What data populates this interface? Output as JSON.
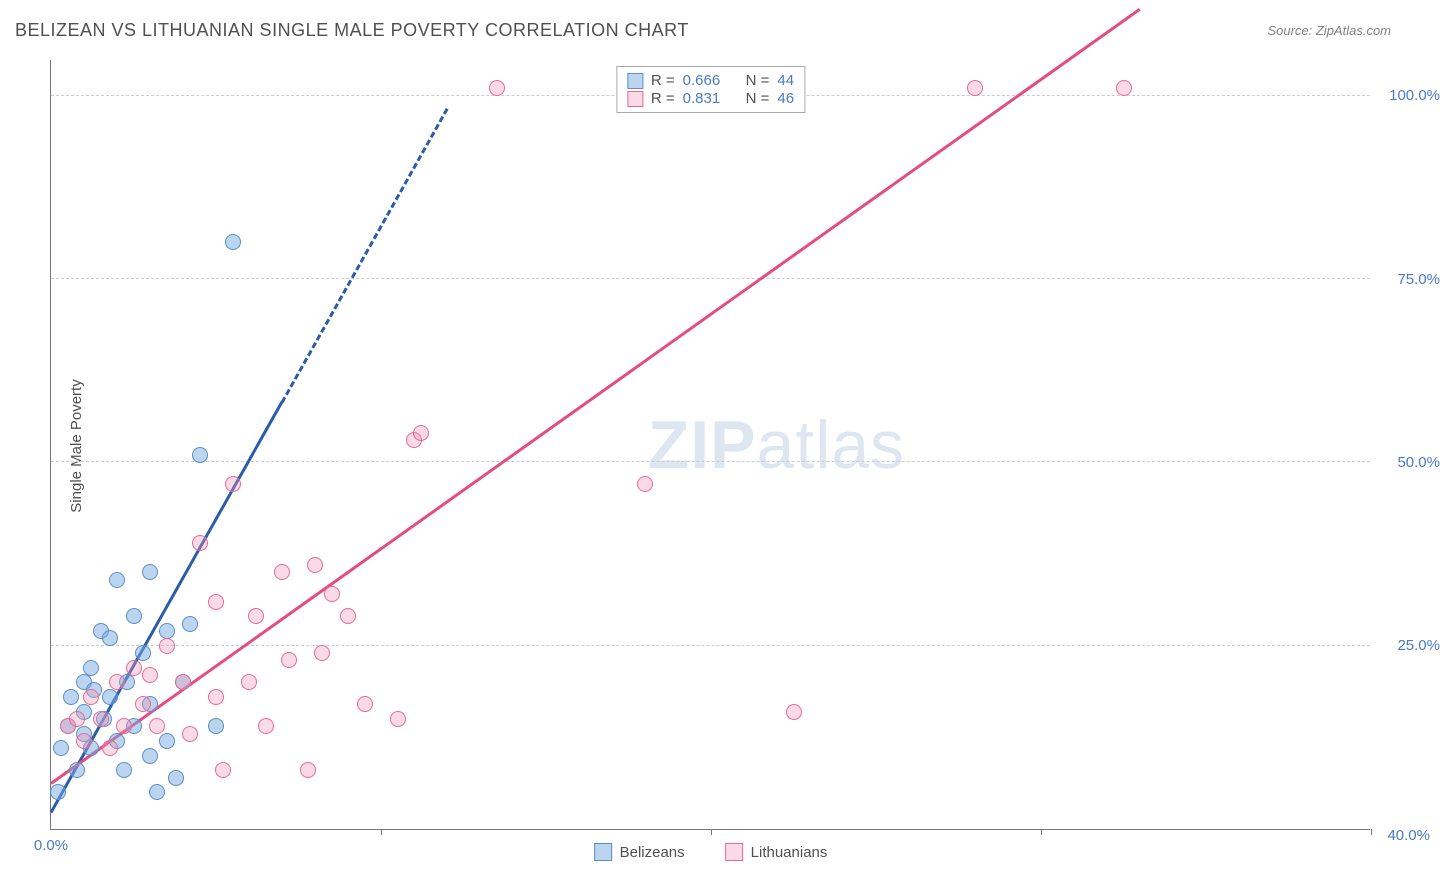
{
  "title": "BELIZEAN VS LITHUANIAN SINGLE MALE POVERTY CORRELATION CHART",
  "source": "Source: ZipAtlas.com",
  "y_axis_label": "Single Male Poverty",
  "watermark": {
    "bold": "ZIP",
    "light": "atlas"
  },
  "chart": {
    "type": "scatter",
    "xlim": [
      0,
      40
    ],
    "ylim": [
      0,
      105
    ],
    "background_color": "#ffffff",
    "grid_color": "#cccccc",
    "axis_color": "#777777",
    "tick_color": "#4a7ac7",
    "y_ticks": [
      {
        "value": 25,
        "label": "25.0%"
      },
      {
        "value": 50,
        "label": "50.0%"
      },
      {
        "value": 75,
        "label": "75.0%"
      },
      {
        "value": 100,
        "label": "100.0%"
      }
    ],
    "x_ticks": [
      {
        "value": 0,
        "label": "0.0%"
      },
      {
        "value": 20,
        "label": ""
      },
      {
        "value": 40,
        "label": "40.0%"
      }
    ],
    "x_tick_marks": [
      10,
      20,
      30,
      40
    ],
    "series": [
      {
        "name": "Belizeans",
        "point_fill": "rgba(120,170,225,0.5)",
        "point_stroke": "#5a8fc8",
        "marker_radius": 8,
        "trend": {
          "color": "#2a5caa",
          "width": 3,
          "dash_from_x": 7,
          "x_range": [
            0,
            12
          ],
          "slope": 8.0,
          "intercept": 2.0
        },
        "data": [
          {
            "x": 0.2,
            "y": 5
          },
          {
            "x": 0.3,
            "y": 11
          },
          {
            "x": 0.5,
            "y": 14
          },
          {
            "x": 0.6,
            "y": 18
          },
          {
            "x": 0.8,
            "y": 8
          },
          {
            "x": 1.0,
            "y": 13
          },
          {
            "x": 1.0,
            "y": 20
          },
          {
            "x": 1.0,
            "y": 16
          },
          {
            "x": 1.2,
            "y": 22
          },
          {
            "x": 1.2,
            "y": 11
          },
          {
            "x": 1.3,
            "y": 19
          },
          {
            "x": 1.5,
            "y": 27
          },
          {
            "x": 1.6,
            "y": 15
          },
          {
            "x": 1.8,
            "y": 26
          },
          {
            "x": 1.8,
            "y": 18
          },
          {
            "x": 2.0,
            "y": 34
          },
          {
            "x": 2.0,
            "y": 12
          },
          {
            "x": 2.2,
            "y": 8
          },
          {
            "x": 2.3,
            "y": 20
          },
          {
            "x": 2.5,
            "y": 29
          },
          {
            "x": 2.5,
            "y": 14
          },
          {
            "x": 2.8,
            "y": 24
          },
          {
            "x": 3.0,
            "y": 35
          },
          {
            "x": 3.0,
            "y": 10
          },
          {
            "x": 3.0,
            "y": 17
          },
          {
            "x": 3.2,
            "y": 5
          },
          {
            "x": 3.5,
            "y": 12
          },
          {
            "x": 3.5,
            "y": 27
          },
          {
            "x": 3.8,
            "y": 7
          },
          {
            "x": 4.0,
            "y": 20
          },
          {
            "x": 4.2,
            "y": 28
          },
          {
            "x": 4.5,
            "y": 51
          },
          {
            "x": 5.0,
            "y": 14
          },
          {
            "x": 5.5,
            "y": 80
          }
        ]
      },
      {
        "name": "Lithuanians",
        "point_fill": "rgba(240,150,180,0.35)",
        "point_stroke": "#e86a94",
        "marker_radius": 8,
        "trend": {
          "color": "#e54c80",
          "width": 3,
          "dash_from_x": 999,
          "x_range": [
            0,
            33
          ],
          "slope": 3.2,
          "intercept": 6.0
        },
        "data": [
          {
            "x": 0.5,
            "y": 14
          },
          {
            "x": 0.8,
            "y": 15
          },
          {
            "x": 1.0,
            "y": 12
          },
          {
            "x": 1.2,
            "y": 18
          },
          {
            "x": 1.5,
            "y": 15
          },
          {
            "x": 1.8,
            "y": 11
          },
          {
            "x": 2.0,
            "y": 20
          },
          {
            "x": 2.2,
            "y": 14
          },
          {
            "x": 2.5,
            "y": 22
          },
          {
            "x": 2.8,
            "y": 17
          },
          {
            "x": 3.0,
            "y": 21
          },
          {
            "x": 3.2,
            "y": 14
          },
          {
            "x": 3.5,
            "y": 25
          },
          {
            "x": 4.0,
            "y": 20
          },
          {
            "x": 4.2,
            "y": 13
          },
          {
            "x": 4.5,
            "y": 39
          },
          {
            "x": 5.0,
            "y": 18
          },
          {
            "x": 5.0,
            "y": 31
          },
          {
            "x": 5.2,
            "y": 8
          },
          {
            "x": 5.5,
            "y": 47
          },
          {
            "x": 6.0,
            "y": 20
          },
          {
            "x": 6.2,
            "y": 29
          },
          {
            "x": 6.5,
            "y": 14
          },
          {
            "x": 7.0,
            "y": 35
          },
          {
            "x": 7.2,
            "y": 23
          },
          {
            "x": 7.8,
            "y": 8
          },
          {
            "x": 8.0,
            "y": 36
          },
          {
            "x": 8.2,
            "y": 24
          },
          {
            "x": 8.5,
            "y": 32
          },
          {
            "x": 9.0,
            "y": 29
          },
          {
            "x": 9.5,
            "y": 17
          },
          {
            "x": 10.5,
            "y": 15
          },
          {
            "x": 11.0,
            "y": 53
          },
          {
            "x": 11.2,
            "y": 54
          },
          {
            "x": 13.5,
            "y": 101
          },
          {
            "x": 18.0,
            "y": 47
          },
          {
            "x": 22.5,
            "y": 16
          },
          {
            "x": 28.0,
            "y": 101
          },
          {
            "x": 32.5,
            "y": 101
          }
        ]
      }
    ],
    "stats": [
      {
        "swatch_fill": "rgba(120,170,225,0.5)",
        "swatch_stroke": "#5a8fc8",
        "r_label": "R =",
        "r_value": "0.666",
        "n_label": "N =",
        "n_value": "44"
      },
      {
        "swatch_fill": "rgba(240,150,180,0.35)",
        "swatch_stroke": "#e86a94",
        "r_label": "R =",
        "r_value": "0.831",
        "n_label": "N =",
        "n_value": "46"
      }
    ],
    "bottom_legend": [
      {
        "swatch_fill": "rgba(120,170,225,0.5)",
        "swatch_stroke": "#5a8fc8",
        "label": "Belizeans"
      },
      {
        "swatch_fill": "rgba(240,150,180,0.35)",
        "swatch_stroke": "#e86a94",
        "label": "Lithuanians"
      }
    ]
  }
}
